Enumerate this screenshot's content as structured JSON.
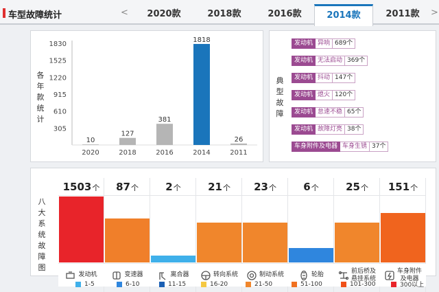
{
  "header": {
    "title": "车型故障统计",
    "prev_arrow": "<",
    "next_arrow": ">",
    "tabs": [
      "2020款",
      "2018款",
      "2016款",
      "2014款",
      "2011款"
    ],
    "active_tab": "2014款"
  },
  "left_panel": {
    "side_label": [
      "各",
      "年",
      "款",
      "统",
      "计"
    ]
  },
  "chart_data": {
    "type": "bar",
    "categories": [
      "2020",
      "2018",
      "2016",
      "2014",
      "2011"
    ],
    "values": [
      10,
      127,
      381,
      1818,
      26
    ],
    "data_labels": [
      "10",
      "127",
      "381",
      "1818",
      "26"
    ],
    "yticks": [
      "1830",
      "1525",
      "1220",
      "915",
      "610",
      "305"
    ],
    "ylim": [
      0,
      1830
    ],
    "highlight_index": 3,
    "colors": {
      "normal": "#b5b5b5",
      "highlight": "#1a75bb"
    },
    "grid": false
  },
  "fault_panel": {
    "side_label": [
      "典",
      "型",
      "故",
      "障"
    ],
    "items": [
      {
        "category": "发动机",
        "name": "异响",
        "count": "689个"
      },
      {
        "category": "发动机",
        "name": "无法启动",
        "count": "369个"
      },
      {
        "category": "发动机",
        "name": "抖动",
        "count": "147个"
      },
      {
        "category": "发动机",
        "name": "熄火",
        "count": "120个"
      },
      {
        "category": "发动机",
        "name": "怠速不稳",
        "count": "65个"
      },
      {
        "category": "发动机",
        "name": "故障灯亮",
        "count": "38个"
      },
      {
        "category": "车身附件及电器",
        "name": "车身生锈",
        "count": "37个"
      }
    ]
  },
  "system_panel": {
    "side_label": [
      "八",
      "大",
      "系",
      "统",
      "故",
      "障",
      "图"
    ],
    "unit": "个",
    "systems": [
      {
        "name": "发动机",
        "count": "1503",
        "level": 1.0,
        "color": "#e8242a",
        "icon": "engine-icon"
      },
      {
        "name": "变速器",
        "count": "87",
        "level": 0.67,
        "color": "#f07f2a",
        "icon": "gearbox-icon"
      },
      {
        "name": "离合器",
        "count": "2",
        "level": 0.1,
        "color": "#3fb0ea",
        "icon": "clutch-icon"
      },
      {
        "name": "转向系统",
        "count": "21",
        "level": 0.6,
        "color": "#f0862c",
        "icon": "steering-wheel-icon"
      },
      {
        "name": "制动系统",
        "count": "23",
        "level": 0.6,
        "color": "#f0862c",
        "icon": "brake-icon"
      },
      {
        "name": "轮胎",
        "count": "6",
        "level": 0.22,
        "color": "#2f86de",
        "icon": "tire-icon"
      },
      {
        "name": "前后桥及\n悬挂系统",
        "count": "25",
        "level": 0.6,
        "color": "#f0862c",
        "icon": "suspension-icon"
      },
      {
        "name": "车身附件\n及电器",
        "count": "151",
        "level": 0.75,
        "color": "#f0641e",
        "icon": "body-electric-icon"
      }
    ]
  },
  "legend": [
    {
      "label": "1-5",
      "color": "#3fb0ea"
    },
    {
      "label": "6-10",
      "color": "#2f86de"
    },
    {
      "label": "11-15",
      "color": "#1a5fb4"
    },
    {
      "label": "16-20",
      "color": "#f5c842"
    },
    {
      "label": "21-50",
      "color": "#f0862c"
    },
    {
      "label": "51-100",
      "color": "#f07020"
    },
    {
      "label": "101-300",
      "color": "#f05018"
    },
    {
      "label": "300以上",
      "color": "#e8242a"
    }
  ]
}
